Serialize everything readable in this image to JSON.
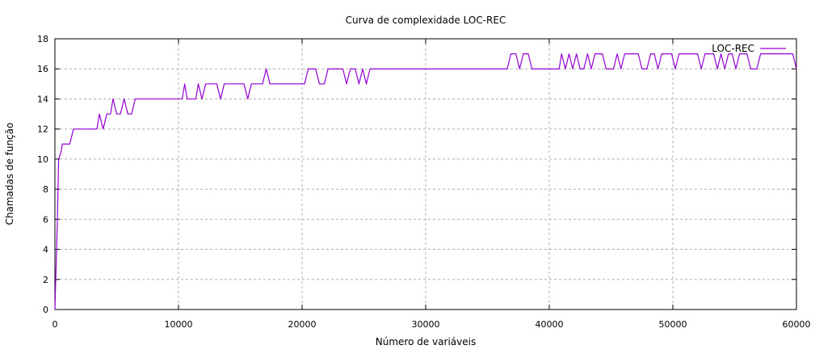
{
  "chart_data": {
    "type": "line",
    "title": "Curva de complexidade LOC-REC",
    "xlabel": "Número de variáveis",
    "ylabel": "Chamadas de função",
    "xlim": [
      0,
      60000
    ],
    "ylim": [
      0,
      18
    ],
    "xticks": [
      0,
      10000,
      20000,
      30000,
      40000,
      50000,
      60000
    ],
    "yticks": [
      0,
      2,
      4,
      6,
      8,
      10,
      12,
      14,
      16,
      18
    ],
    "grid": true,
    "legend_position": "top-right",
    "series": [
      {
        "name": "LOC-REC",
        "color": "#9400d3",
        "points": [
          [
            0,
            0
          ],
          [
            200,
            6
          ],
          [
            300,
            10
          ],
          [
            500,
            10.5
          ],
          [
            600,
            11
          ],
          [
            1200,
            11
          ],
          [
            1500,
            12
          ],
          [
            3400,
            12
          ],
          [
            3600,
            13
          ],
          [
            3900,
            12
          ],
          [
            4200,
            13
          ],
          [
            4500,
            13
          ],
          [
            4700,
            14
          ],
          [
            5000,
            13
          ],
          [
            5300,
            13
          ],
          [
            5600,
            14
          ],
          [
            5900,
            13
          ],
          [
            6200,
            13
          ],
          [
            6500,
            14
          ],
          [
            10300,
            14
          ],
          [
            10500,
            15
          ],
          [
            10700,
            14
          ],
          [
            11400,
            14
          ],
          [
            11600,
            15
          ],
          [
            11900,
            14
          ],
          [
            12200,
            15
          ],
          [
            13100,
            15
          ],
          [
            13400,
            14
          ],
          [
            13700,
            15
          ],
          [
            15300,
            15
          ],
          [
            15600,
            14
          ],
          [
            15900,
            15
          ],
          [
            16800,
            15
          ],
          [
            17100,
            16
          ],
          [
            17400,
            15
          ],
          [
            20200,
            15
          ],
          [
            20500,
            16
          ],
          [
            21100,
            16
          ],
          [
            21400,
            15
          ],
          [
            21800,
            15
          ],
          [
            22100,
            16
          ],
          [
            23300,
            16
          ],
          [
            23600,
            15
          ],
          [
            23900,
            16
          ],
          [
            24300,
            16
          ],
          [
            24600,
            15
          ],
          [
            24900,
            16
          ],
          [
            25200,
            15
          ],
          [
            25500,
            16
          ],
          [
            36600,
            16
          ],
          [
            36900,
            17
          ],
          [
            37300,
            17
          ],
          [
            37600,
            16
          ],
          [
            37900,
            17
          ],
          [
            38300,
            17
          ],
          [
            38600,
            16
          ],
          [
            40800,
            16
          ],
          [
            41000,
            17
          ],
          [
            41300,
            16
          ],
          [
            41600,
            17
          ],
          [
            41900,
            16
          ],
          [
            42200,
            17
          ],
          [
            42500,
            16
          ],
          [
            42800,
            16
          ],
          [
            43100,
            17
          ],
          [
            43400,
            16
          ],
          [
            43700,
            17
          ],
          [
            44300,
            17
          ],
          [
            44600,
            16
          ],
          [
            45200,
            16
          ],
          [
            45500,
            17
          ],
          [
            45800,
            16
          ],
          [
            46100,
            17
          ],
          [
            47200,
            17
          ],
          [
            47500,
            16
          ],
          [
            47900,
            16
          ],
          [
            48200,
            17
          ],
          [
            48500,
            17
          ],
          [
            48800,
            16
          ],
          [
            49100,
            17
          ],
          [
            49900,
            17
          ],
          [
            50200,
            16
          ],
          [
            50500,
            17
          ],
          [
            52000,
            17
          ],
          [
            52300,
            16
          ],
          [
            52600,
            17
          ],
          [
            53300,
            17
          ],
          [
            53600,
            16
          ],
          [
            53900,
            17
          ],
          [
            54200,
            16
          ],
          [
            54500,
            17
          ],
          [
            54800,
            17
          ],
          [
            55100,
            16
          ],
          [
            55400,
            17
          ],
          [
            56000,
            17
          ],
          [
            56300,
            16
          ],
          [
            56800,
            16
          ],
          [
            57100,
            17
          ],
          [
            59700,
            17
          ],
          [
            60000,
            16
          ]
        ]
      }
    ]
  }
}
